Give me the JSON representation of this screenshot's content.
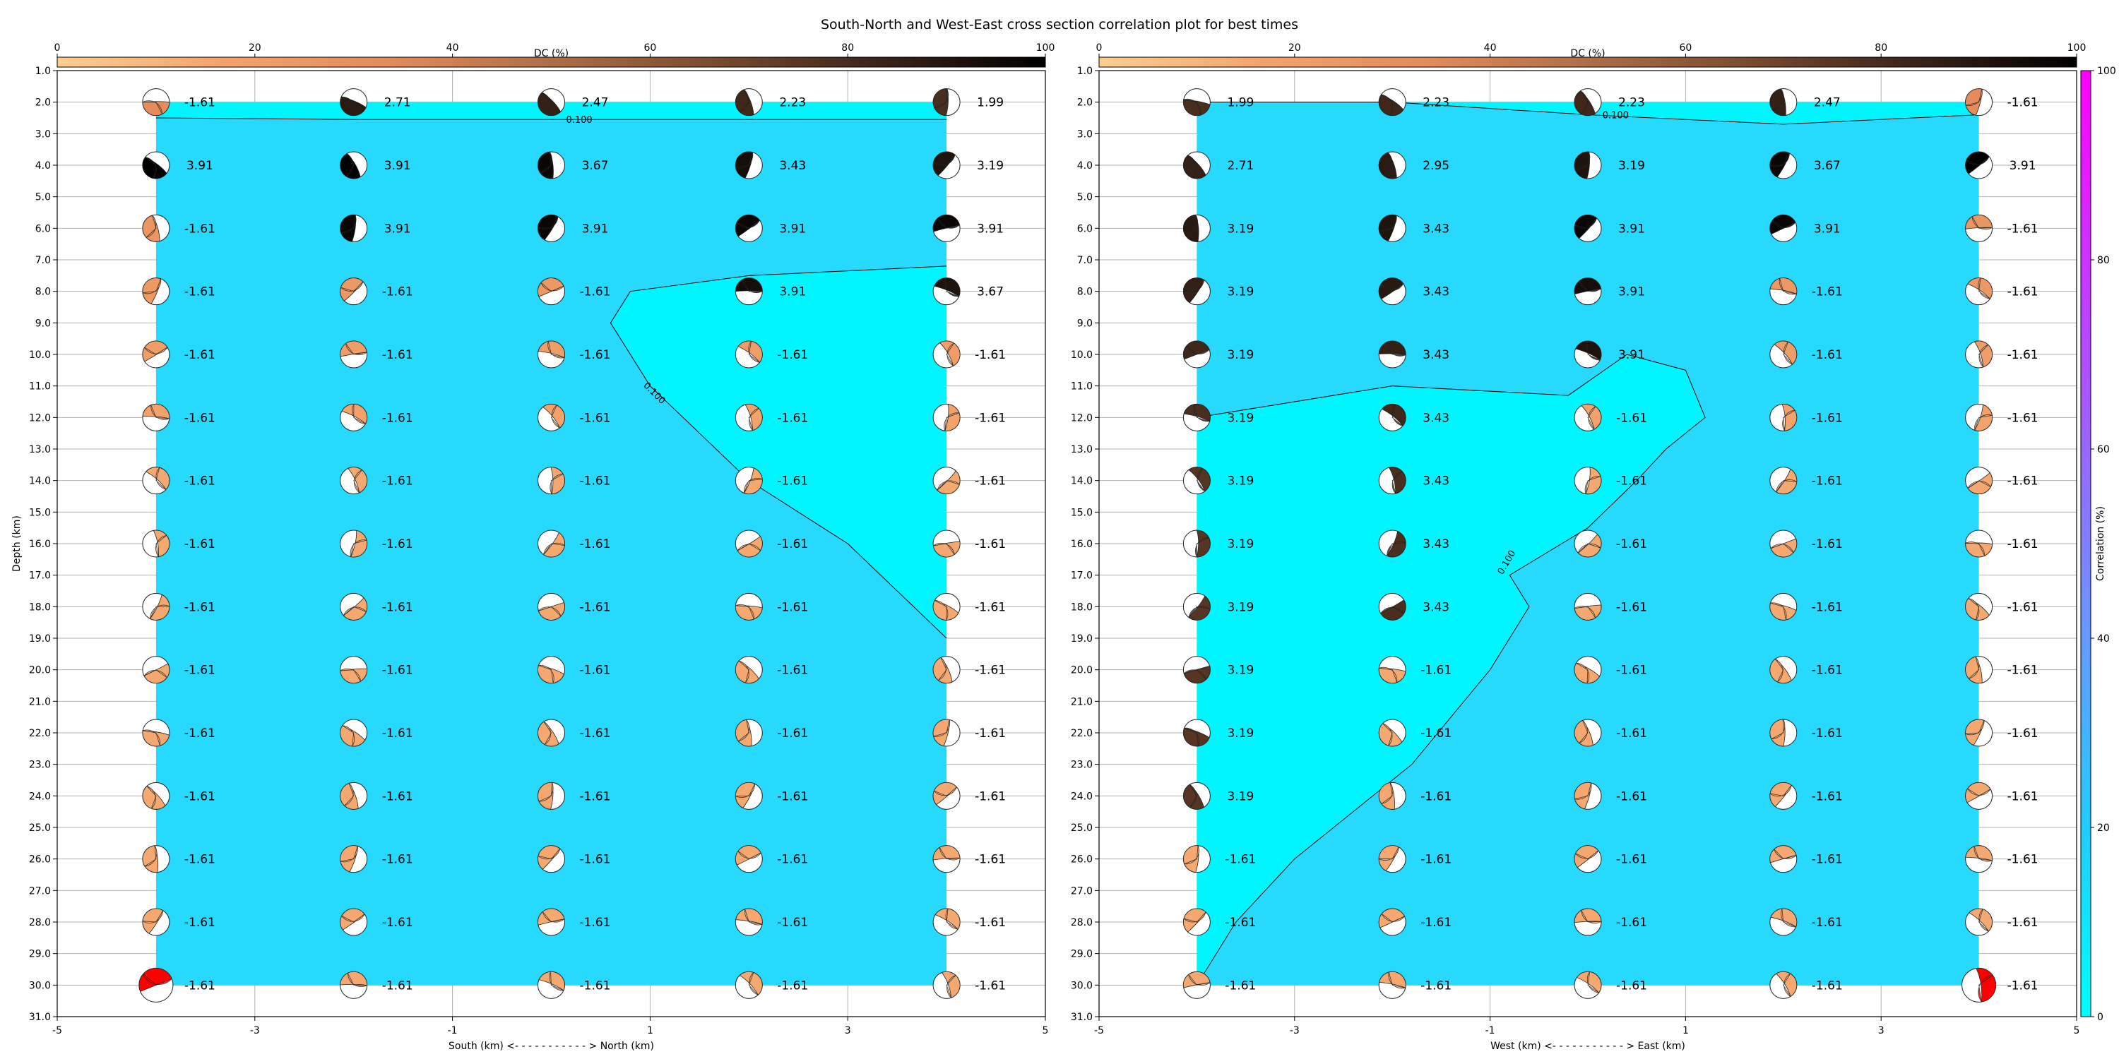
{
  "figure": {
    "title": "South-North and West-East cross section correlation plot for best times"
  },
  "colors": {
    "contour_fill_high": "#26d9fd",
    "contour_fill_low": "#00f5ff",
    "grid": "#b0b0b0",
    "highlight_beachball": "#ff0000",
    "dc_colormap": [
      "#fdcf8e",
      "#f4a46b",
      "#e58c5a",
      "#b06e48",
      "#7a4b2f",
      "#3a2418",
      "#000000"
    ],
    "corr_colormap": [
      "#00ffff",
      "#22ccff",
      "#6699ff",
      "#9966ff",
      "#cc33ff",
      "#ff00ff"
    ]
  },
  "chart_data": [
    {
      "type": "heatmap",
      "title": "",
      "xlabel": "South (km) <- - - - - - - - - - - > North (km)",
      "ylabel": "Depth (km)",
      "xlim": [
        -5,
        5
      ],
      "ylim": [
        31,
        1
      ],
      "x_ticks": [
        "-5",
        "-3",
        "-1",
        "1",
        "3",
        "5"
      ],
      "y_ticks": [
        "1.0",
        "2.0",
        "3.0",
        "4.0",
        "5.0",
        "6.0",
        "7.0",
        "8.0",
        "9.0",
        "10.0",
        "11.0",
        "12.0",
        "13.0",
        "14.0",
        "15.0",
        "16.0",
        "17.0",
        "18.0",
        "19.0",
        "20.0",
        "21.0",
        "22.0",
        "23.0",
        "24.0",
        "25.0",
        "26.0",
        "27.0",
        "28.0",
        "29.0",
        "30.0",
        "31.0"
      ],
      "grid": true,
      "colorbar": {
        "label": "DC (%)",
        "placement": "top",
        "range": [
          0,
          100
        ],
        "ticks": [
          "0",
          "20",
          "40",
          "60",
          "80",
          "100"
        ]
      },
      "contour": {
        "level": 0.1,
        "label": "0.100",
        "region": [
          [
            4,
            7.2
          ],
          [
            2,
            7.5
          ],
          [
            0.8,
            8
          ],
          [
            0.6,
            9
          ],
          [
            1,
            11
          ],
          [
            2,
            14
          ],
          [
            3,
            16
          ],
          [
            4,
            19
          ]
        ],
        "upper_line": [
          [
            -4,
            2.5
          ],
          [
            -2,
            2.55
          ],
          [
            0,
            2.55
          ],
          [
            2,
            2.55
          ],
          [
            4,
            2.55
          ]
        ]
      },
      "x_positions": [
        -4,
        -2,
        0,
        2,
        4
      ],
      "depths": [
        2,
        4,
        6,
        8,
        10,
        12,
        14,
        16,
        18,
        20,
        22,
        24,
        26,
        28,
        30
      ],
      "values": [
        [
          "-1.61",
          "2.71",
          "2.47",
          "2.23",
          "1.99"
        ],
        [
          "3.91",
          "3.91",
          "3.67",
          "3.43",
          "3.19"
        ],
        [
          "-1.61",
          "3.91",
          "3.91",
          "3.91",
          "3.91"
        ],
        [
          "-1.61",
          "-1.61",
          "-1.61",
          "3.91",
          "3.67"
        ],
        [
          "-1.61",
          "-1.61",
          "-1.61",
          "-1.61",
          "-1.61"
        ],
        [
          "-1.61",
          "-1.61",
          "-1.61",
          "-1.61",
          "-1.61"
        ],
        [
          "-1.61",
          "-1.61",
          "-1.61",
          "-1.61",
          "-1.61"
        ],
        [
          "-1.61",
          "-1.61",
          "-1.61",
          "-1.61",
          "-1.61"
        ],
        [
          "-1.61",
          "-1.61",
          "-1.61",
          "-1.61",
          "-1.61"
        ],
        [
          "-1.61",
          "-1.61",
          "-1.61",
          "-1.61",
          "-1.61"
        ],
        [
          "-1.61",
          "-1.61",
          "-1.61",
          "-1.61",
          "-1.61"
        ],
        [
          "-1.61",
          "-1.61",
          "-1.61",
          "-1.61",
          "-1.61"
        ],
        [
          "-1.61",
          "-1.61",
          "-1.61",
          "-1.61",
          "-1.61"
        ],
        [
          "-1.61",
          "-1.61",
          "-1.61",
          "-1.61",
          "-1.61"
        ],
        [
          "-1.61",
          "-1.61",
          "-1.61",
          "-1.61",
          "-1.61"
        ]
      ],
      "highlight": [
        [
          0,
          14
        ]
      ]
    },
    {
      "type": "heatmap",
      "title": "",
      "xlabel": "West (km) <- - - - - - - - - - - > East (km)",
      "ylabel": "",
      "xlim": [
        -5,
        5
      ],
      "ylim": [
        31,
        1
      ],
      "x_ticks": [
        "-5",
        "-3",
        "-1",
        "1",
        "3",
        "5"
      ],
      "y_ticks": [
        "1.0",
        "2.0",
        "3.0",
        "4.0",
        "5.0",
        "6.0",
        "7.0",
        "8.0",
        "9.0",
        "10.0",
        "11.0",
        "12.0",
        "13.0",
        "14.0",
        "15.0",
        "16.0",
        "17.0",
        "18.0",
        "19.0",
        "20.0",
        "21.0",
        "22.0",
        "23.0",
        "24.0",
        "25.0",
        "26.0",
        "27.0",
        "28.0",
        "29.0",
        "30.0",
        "31.0"
      ],
      "grid": true,
      "colorbar": {
        "label": "DC (%)",
        "placement": "top",
        "range": [
          0,
          100
        ],
        "ticks": [
          "0",
          "20",
          "40",
          "60",
          "80",
          "100"
        ]
      },
      "contour": {
        "level": 0.1,
        "label": "0.100",
        "region": [
          [
            -4,
            12
          ],
          [
            -2,
            11
          ],
          [
            -0.2,
            11.3
          ],
          [
            0.4,
            10
          ],
          [
            1,
            10.5
          ],
          [
            1.2,
            12
          ],
          [
            0.8,
            13
          ],
          [
            0.5,
            14
          ],
          [
            0,
            15.5
          ],
          [
            -0.8,
            17
          ],
          [
            -0.6,
            18
          ],
          [
            -1,
            20
          ],
          [
            -1.8,
            23
          ],
          [
            -3,
            26
          ],
          [
            -3.6,
            28
          ],
          [
            -4,
            30
          ]
        ],
        "upper_line": [
          [
            -4,
            2
          ],
          [
            -2,
            2
          ],
          [
            0,
            2.4
          ],
          [
            2,
            2.7
          ],
          [
            4,
            2.4
          ]
        ]
      },
      "x_positions": [
        -4,
        -2,
        0,
        2,
        4
      ],
      "depths": [
        2,
        4,
        6,
        8,
        10,
        12,
        14,
        16,
        18,
        20,
        22,
        24,
        26,
        28,
        30
      ],
      "values": [
        [
          "1.99",
          "2.23",
          "2.23",
          "2.47",
          "-1.61"
        ],
        [
          "2.71",
          "2.95",
          "3.19",
          "3.67",
          "3.91"
        ],
        [
          "3.19",
          "3.43",
          "3.91",
          "3.91",
          "-1.61"
        ],
        [
          "3.19",
          "3.43",
          "3.91",
          "-1.61",
          "-1.61"
        ],
        [
          "3.19",
          "3.43",
          "3.91",
          "-1.61",
          "-1.61"
        ],
        [
          "3.19",
          "3.43",
          "-1.61",
          "-1.61",
          "-1.61"
        ],
        [
          "3.19",
          "3.43",
          "-1.61",
          "-1.61",
          "-1.61"
        ],
        [
          "3.19",
          "3.43",
          "-1.61",
          "-1.61",
          "-1.61"
        ],
        [
          "3.19",
          "3.43",
          "-1.61",
          "-1.61",
          "-1.61"
        ],
        [
          "3.19",
          "-1.61",
          "-1.61",
          "-1.61",
          "-1.61"
        ],
        [
          "3.19",
          "-1.61",
          "-1.61",
          "-1.61",
          "-1.61"
        ],
        [
          "3.19",
          "-1.61",
          "-1.61",
          "-1.61",
          "-1.61"
        ],
        [
          "-1.61",
          "-1.61",
          "-1.61",
          "-1.61",
          "-1.61"
        ],
        [
          "-1.61",
          "-1.61",
          "-1.61",
          "-1.61",
          "-1.61"
        ],
        [
          "-1.61",
          "-1.61",
          "-1.61",
          "-1.61",
          "-1.61"
        ]
      ],
      "highlight": [
        [
          4,
          14
        ]
      ]
    }
  ],
  "correlation_colorbar": {
    "label": "Correlation (%)",
    "range": [
      0,
      100
    ],
    "ticks": [
      "0",
      "20",
      "40",
      "60",
      "80",
      "100"
    ]
  }
}
